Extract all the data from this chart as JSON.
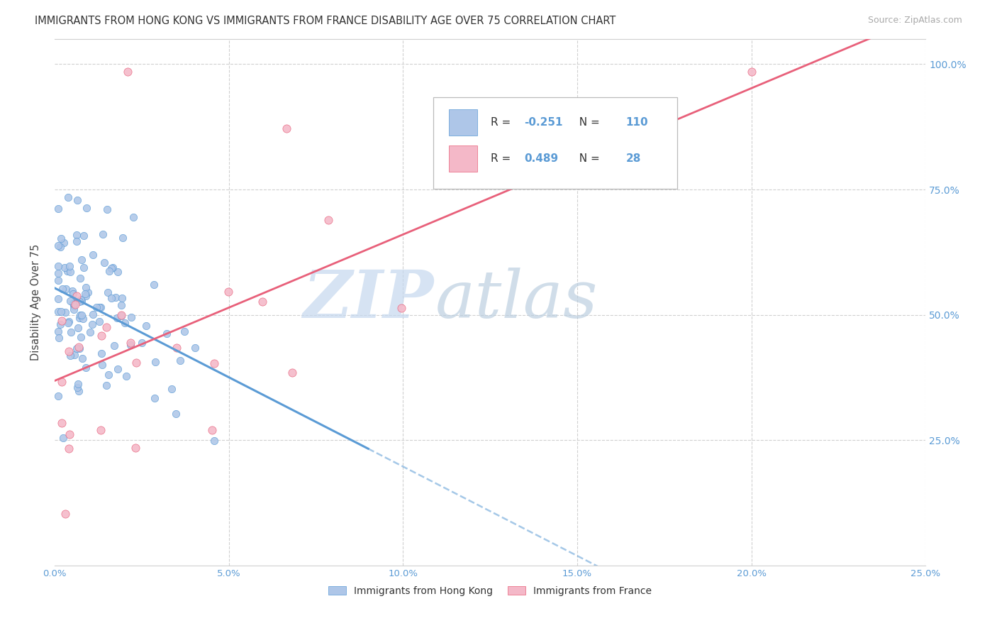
{
  "title": "IMMIGRANTS FROM HONG KONG VS IMMIGRANTS FROM FRANCE DISABILITY AGE OVER 75 CORRELATION CHART",
  "source": "Source: ZipAtlas.com",
  "ylabel": "Disability Age Over 75",
  "hk_R": -0.251,
  "hk_N": 110,
  "fr_R": 0.489,
  "fr_N": 28,
  "color_hk_fill": "#aec6e8",
  "color_hk_edge": "#5b9bd5",
  "color_fr_fill": "#f4b8c8",
  "color_fr_edge": "#e8607a",
  "color_hk_line": "#5b9bd5",
  "color_fr_line": "#e8607a",
  "color_blue_text": "#5b9bd5",
  "background": "#ffffff",
  "grid_color": "#d0d0d0",
  "watermark_zip": "ZIP",
  "watermark_atlas": "atlas",
  "legend_label_hk": "Immigrants from Hong Kong",
  "legend_label_fr": "Immigrants from France",
  "xlim": [
    0.0,
    0.25
  ],
  "ylim": [
    0.0,
    1.05
  ],
  "x_ticks": [
    0.0,
    0.05,
    0.1,
    0.15,
    0.2,
    0.25
  ],
  "x_tick_labels": [
    "0.0%",
    "5.0%",
    "10.0%",
    "15.0%",
    "20.0%",
    "25.0%"
  ],
  "y_ticks_right": [
    0.25,
    0.5,
    0.75,
    1.0
  ],
  "y_tick_labels_right": [
    "25.0%",
    "50.0%",
    "75.0%",
    "100.0%"
  ]
}
